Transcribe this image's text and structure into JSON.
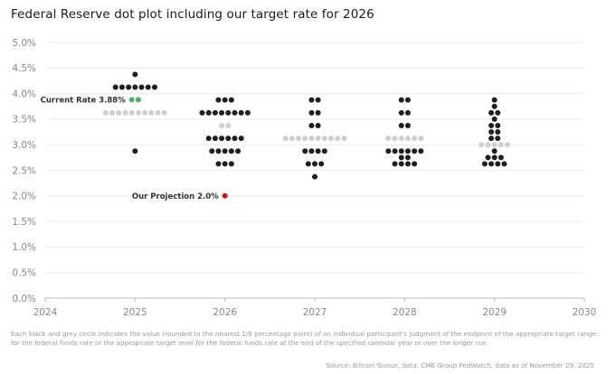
{
  "page": {
    "title": "Federal Reserve dot plot including our target rate for 2026",
    "footnote": "Each black and grey circle indicates the value (rounded to the nearest 1/8 percentage point) of an individual participant's judgment of the midpoint of the appropriate target range for the federal funds rate or the appropriate target level for the federal funds rate at the end of the specified calendar year or over the longer run.",
    "source": "Source: Bitcoin Suisse, data: CME Group FedWatch, data as of November 29, 2025"
  },
  "chart_data": {
    "type": "scatter",
    "title": "Federal Reserve dot plot including our target rate for 2026",
    "xlim": [
      2024,
      2030
    ],
    "ylim": [
      0,
      5
    ],
    "x_ticks": [
      "2024",
      "2025",
      "2026",
      "2027",
      "2028",
      "2029",
      "2030"
    ],
    "y_ticks": [
      "0.0%",
      "0.5%",
      "1.0%",
      "1.5%",
      "2.0%",
      "2.5%",
      "3.0%",
      "3.5%",
      "4.0%",
      "4.5%",
      "5.0%"
    ],
    "grid": "horizontal",
    "colors": {
      "fed": "#1f1f1f",
      "median": "#cfcfcf",
      "current": "#4caf6a",
      "projection": "#c8171e"
    },
    "series": [
      {
        "x": 2025,
        "points": [
          {
            "y": 4.375,
            "count": 1
          },
          {
            "y": 4.125,
            "count": 7
          },
          {
            "y": 3.625,
            "count": 10,
            "median": true
          },
          {
            "y": 2.875,
            "count": 1
          }
        ]
      },
      {
        "x": 2026,
        "points": [
          {
            "y": 3.875,
            "count": 3
          },
          {
            "y": 3.625,
            "count": 8
          },
          {
            "y": 3.375,
            "count": 2,
            "median": true
          },
          {
            "y": 3.125,
            "count": 6
          },
          {
            "y": 2.875,
            "count": 5
          },
          {
            "y": 2.625,
            "count": 3
          }
        ]
      },
      {
        "x": 2027,
        "points": [
          {
            "y": 3.875,
            "count": 2
          },
          {
            "y": 3.625,
            "count": 2
          },
          {
            "y": 3.375,
            "count": 2
          },
          {
            "y": 3.125,
            "count": 10,
            "median": true
          },
          {
            "y": 2.875,
            "count": 4
          },
          {
            "y": 2.625,
            "count": 3
          },
          {
            "y": 2.375,
            "count": 1
          }
        ]
      },
      {
        "x": 2028,
        "points": [
          {
            "y": 3.875,
            "count": 2
          },
          {
            "y": 3.625,
            "count": 2
          },
          {
            "y": 3.375,
            "count": 2
          },
          {
            "y": 3.125,
            "count": 6,
            "median": true
          },
          {
            "y": 2.875,
            "count": 6
          },
          {
            "y": 2.75,
            "count": 2
          },
          {
            "y": 2.625,
            "count": 4
          }
        ]
      },
      {
        "x": 2029,
        "points": [
          {
            "y": 3.875,
            "count": 1
          },
          {
            "y": 3.75,
            "count": 1
          },
          {
            "y": 3.625,
            "count": 2
          },
          {
            "y": 3.5,
            "count": 1
          },
          {
            "y": 3.375,
            "count": 2
          },
          {
            "y": 3.25,
            "count": 2
          },
          {
            "y": 3.125,
            "count": 2
          },
          {
            "y": 3.0,
            "count": 5,
            "median": true
          },
          {
            "y": 2.875,
            "count": 1
          },
          {
            "y": 2.75,
            "count": 3
          },
          {
            "y": 2.625,
            "count": 4
          }
        ]
      }
    ],
    "annotations": [
      {
        "label": "Current Rate 3.88%",
        "x": 2025,
        "y": 3.88,
        "count": 2,
        "color": "current"
      },
      {
        "label": "Our Projection 2.0%",
        "x": 2026,
        "y": 2.0,
        "count": 1,
        "color": "projection"
      }
    ]
  }
}
